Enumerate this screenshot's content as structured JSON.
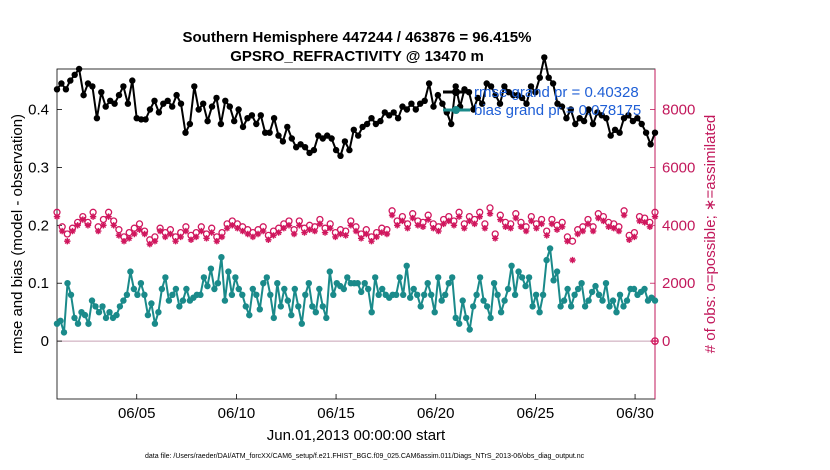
{
  "chart_data": {
    "type": "line",
    "title_line1": "Southern Hemisphere 447244 / 463876 = 96.415%",
    "title_line2": "GPSRO_REFRACTIVITY @ 13470 m",
    "xlabel": "Jun.01,2013 00:00:00 start",
    "ylabel_left": "rmse and bias (model - observation)",
    "ylabel_right": "# of obs: o=possible; ∗=assimilated",
    "footnote": "data file: /Users/raeder/DAI/ATM_forcXX/CAM6_setup/f.e21.FHIST_BGC.f09_025.CAM6assim.011/Diags_NTrS_2013-06/obs_diag_output.nc",
    "ylim_left": [
      -0.1,
      0.47
    ],
    "yticks_left": [
      {
        "v": 0,
        "label": "0"
      },
      {
        "v": 0.1,
        "label": "0.1"
      },
      {
        "v": 0.2,
        "label": "0.2"
      },
      {
        "v": 0.3,
        "label": "0.3"
      },
      {
        "v": 0.4,
        "label": "0.4"
      }
    ],
    "ylim_right": [
      -2000,
      9400
    ],
    "yticks_right": [
      {
        "v": 0,
        "label": "0"
      },
      {
        "v": 2000,
        "label": "2000"
      },
      {
        "v": 4000,
        "label": "4000"
      },
      {
        "v": 6000,
        "label": "6000"
      },
      {
        "v": 8000,
        "label": "8000"
      }
    ],
    "xlim": [
      1,
      31
    ],
    "xticks": [
      {
        "v": 5,
        "label": "06/05"
      },
      {
        "v": 10,
        "label": "06/10"
      },
      {
        "v": 15,
        "label": "06/15"
      },
      {
        "v": 20,
        "label": "06/20"
      },
      {
        "v": 25,
        "label": "06/25"
      },
      {
        "v": 30,
        "label": "06/30"
      }
    ],
    "grid": false,
    "legend_position": "top-right",
    "colors": {
      "rmse": "#000000",
      "bias": "#1a8a8a",
      "obs": "#d0175e",
      "zero_line": "#c8a0b4",
      "legend_text": "#1f5fd6"
    },
    "series": [
      {
        "name": "rmse grand pr = 0.40328",
        "axis": "left",
        "values": [
          0.435,
          0.445,
          0.435,
          0.45,
          0.46,
          0.47,
          0.425,
          0.445,
          0.44,
          0.385,
          0.43,
          0.405,
          0.415,
          0.41,
          0.425,
          0.44,
          0.41,
          0.45,
          0.385,
          0.383,
          0.383,
          0.4,
          0.415,
          0.395,
          0.41,
          0.415,
          0.405,
          0.425,
          0.41,
          0.36,
          0.375,
          0.44,
          0.4,
          0.41,
          0.38,
          0.405,
          0.42,
          0.375,
          0.415,
          0.405,
          0.38,
          0.4,
          0.37,
          0.385,
          0.39,
          0.375,
          0.39,
          0.36,
          0.36,
          0.385,
          0.355,
          0.345,
          0.37,
          0.35,
          0.335,
          0.34,
          0.335,
          0.325,
          0.33,
          0.355,
          0.35,
          0.355,
          0.35,
          0.33,
          0.32,
          0.345,
          0.33,
          0.365,
          0.355,
          0.37,
          0.375,
          0.385,
          0.375,
          0.38,
          0.395,
          0.39,
          0.395,
          0.385,
          0.405,
          0.4,
          0.41,
          0.4,
          0.41,
          0.415,
          0.445,
          0.405,
          0.425,
          0.41,
          0.395,
          0.375,
          0.44,
          0.405,
          0.435,
          0.43,
          0.4,
          0.42,
          0.41,
          0.445,
          0.44,
          0.425,
          0.41,
          0.44,
          0.43,
          0.425,
          0.425,
          0.42,
          0.41,
          0.44,
          0.43,
          0.455,
          0.49,
          0.455,
          0.445,
          0.41,
          0.405,
          0.385,
          0.4,
          0.375,
          0.385,
          0.38,
          0.4,
          0.375,
          0.395,
          0.39,
          0.385,
          0.355,
          0.365,
          0.36,
          0.385,
          0.39,
          0.38,
          0.385,
          0.375,
          0.36,
          0.34,
          0.36
        ]
      },
      {
        "name": "bias grand pr = 0.078175",
        "axis": "left",
        "values": [
          0.03,
          0.035,
          0.015,
          0.1,
          0.08,
          0.04,
          0.03,
          0.05,
          0.045,
          0.03,
          0.07,
          0.06,
          0.05,
          0.06,
          0.04,
          0.05,
          0.04,
          0.045,
          0.06,
          0.07,
          0.08,
          0.12,
          0.09,
          0.08,
          0.1,
          0.08,
          0.045,
          0.065,
          0.03,
          0.05,
          0.09,
          0.11,
          0.07,
          0.08,
          0.09,
          0.06,
          0.07,
          0.09,
          0.07,
          0.075,
          0.08,
          0.08,
          0.11,
          0.095,
          0.125,
          0.09,
          0.1,
          0.145,
          0.07,
          0.12,
          0.08,
          0.11,
          0.09,
          0.08,
          0.06,
          0.045,
          0.09,
          0.08,
          0.055,
          0.1,
          0.11,
          0.08,
          0.04,
          0.1,
          0.06,
          0.09,
          0.07,
          0.045,
          0.09,
          0.06,
          0.03,
          0.08,
          0.1,
          0.06,
          0.05,
          0.09,
          0.06,
          0.04,
          0.12,
          0.08,
          0.1,
          0.095,
          0.09,
          0.11,
          0.1,
          0.1,
          0.1,
          0.085,
          0.1,
          0.09,
          0.05,
          0.11,
          0.08,
          0.09,
          0.08,
          0.075,
          0.08,
          0.08,
          0.11,
          0.08,
          0.13,
          0.075,
          0.09,
          0.08,
          0.06,
          0.08,
          0.1,
          0.08,
          0.05,
          0.11,
          0.07,
          0.08,
          0.1,
          0.11,
          0.04,
          0.03,
          0.07,
          0.04,
          0.02,
          0.06,
          0.08,
          0.11,
          0.07,
          0.06,
          0.04,
          0.1,
          0.08,
          0.05,
          0.07,
          0.09,
          0.13,
          0.08,
          0.12,
          0.11,
          0.095,
          0.11,
          0.06,
          0.08,
          0.05,
          0.08,
          0.14,
          0.16,
          0.105,
          0.12,
          0.06,
          0.07,
          0.09,
          0.06,
          0.08,
          0.09,
          0.1,
          0.06,
          0.07,
          0.085,
          0.095,
          0.08,
          0.07,
          0.1,
          0.06,
          0.07,
          0.05,
          0.08,
          0.06,
          0.07,
          0.09,
          0.09,
          0.08,
          0.085,
          0.09,
          0.07,
          0.075,
          0.07
        ]
      },
      {
        "name": "obs possible",
        "axis": "right",
        "marker": "o",
        "values": [
          4450,
          3950,
          3700,
          3900,
          4100,
          4300,
          4100,
          4450,
          3950,
          4200,
          4450,
          4150,
          3850,
          3600,
          3750,
          3900,
          4050,
          3800,
          3500,
          3600,
          3900,
          3750,
          3850,
          3600,
          3750,
          3950,
          3650,
          3750,
          3950,
          3700,
          3900,
          3600,
          3750,
          4050,
          4150,
          4050,
          3950,
          3850,
          3750,
          3850,
          3950,
          3650,
          3800,
          3900,
          4050,
          4150,
          3850,
          4150,
          3900,
          4000,
          3950,
          4200,
          3900,
          4050,
          3750,
          3850,
          3800,
          4150,
          3950,
          3700,
          3850,
          3600,
          3750,
          3900,
          3850,
          4500,
          4150,
          4300,
          4050,
          4400,
          4150,
          4100,
          4350,
          4050,
          3950,
          4200,
          4300,
          4150,
          4450,
          4050,
          4300,
          4200,
          4450,
          4050,
          4600,
          3700,
          4350,
          4100,
          4050,
          4400,
          4100,
          3950,
          4300,
          4050,
          4200,
          3800,
          4200,
          4000,
          4100,
          3600,
          3450,
          3850,
          3950,
          4200,
          3950,
          4400,
          4300,
          4100,
          4050,
          3950,
          4500,
          3650,
          3750,
          4300,
          4250,
          4100,
          4450
        ]
      },
      {
        "name": "obs assimilated",
        "axis": "right",
        "marker": "*",
        "values": [
          4300,
          3800,
          3450,
          3800,
          4000,
          4200,
          4000,
          4300,
          3800,
          4000,
          4300,
          4000,
          3650,
          3450,
          3550,
          3700,
          3850,
          3700,
          3350,
          3450,
          3800,
          3600,
          3700,
          3450,
          3600,
          3800,
          3500,
          3600,
          3800,
          3550,
          3750,
          3450,
          3600,
          3900,
          4000,
          3900,
          3800,
          3700,
          3600,
          3700,
          3800,
          3500,
          3650,
          3750,
          3900,
          4000,
          3700,
          4000,
          3750,
          3850,
          3800,
          4050,
          3750,
          3900,
          3600,
          3700,
          3650,
          4000,
          3800,
          3550,
          3700,
          3450,
          3600,
          3750,
          3700,
          4350,
          4000,
          4150,
          3900,
          4250,
          4000,
          3950,
          4200,
          3900,
          3800,
          4050,
          4150,
          4000,
          4300,
          3900,
          4150,
          4050,
          4300,
          3900,
          4400,
          3550,
          4200,
          3950,
          3900,
          4250,
          3950,
          3800,
          4150,
          3900,
          4050,
          3650,
          4050,
          3850,
          3950,
          3450,
          2800,
          3700,
          3800,
          4050,
          3800,
          4250,
          4150,
          3950,
          3900,
          3800,
          4350,
          3500,
          3600,
          4150,
          4100,
          3950,
          4300
        ]
      }
    ],
    "obs_end_value": 0
  }
}
